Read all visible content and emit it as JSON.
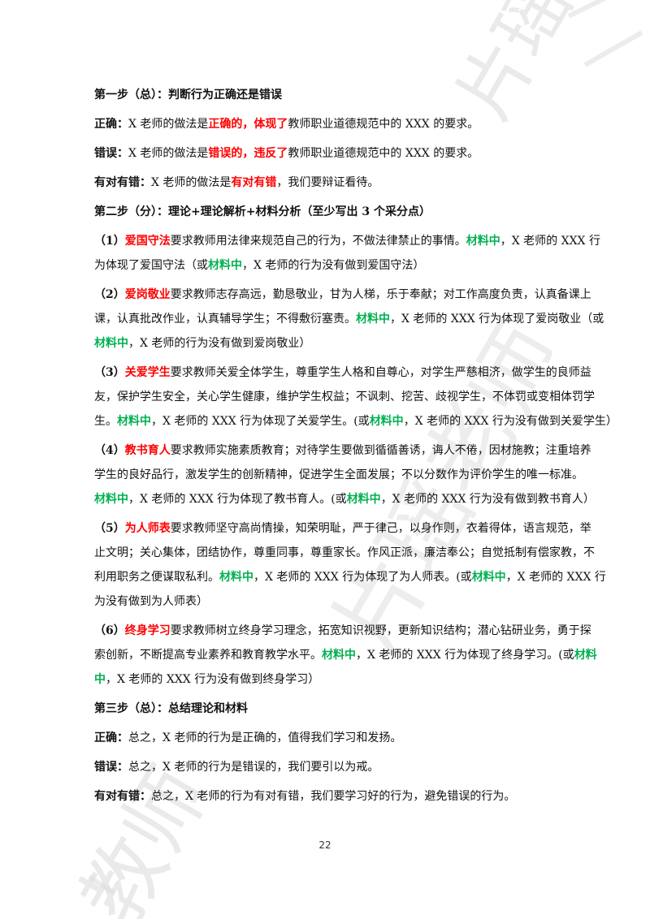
{
  "step1": {
    "heading": "第一步（总）：判断行为正确还是错误",
    "correct": {
      "label": "正确：",
      "pre": "X 老师的做法是",
      "highlight": "正确的，体现了",
      "post": "教师职业道德规范中的 XXX 的要求。"
    },
    "wrong": {
      "label": "错误：",
      "pre": "X 老师的做法是",
      "highlight": "错误的，违反了",
      "post": "教师职业道德规范中的 XXX 的要求。"
    },
    "mixed": {
      "label": "有对有错：",
      "pre": "X 老师的做法是",
      "highlight": "有对有错",
      "post": "，我们要辩证看待。"
    }
  },
  "step2": {
    "heading": "第二步（分）：理论+理论解析+材料分析（至少写出 3 个采分点）",
    "items": [
      {
        "num": "（1）",
        "term": "爱国守法",
        "line1_text": "要求教师用法律来规范自己的行为，不做法律禁止的事情。",
        "line1_green": "材料中",
        "line1_tail": "，X 老师的 XXX 行",
        "line2_pre": "为体现了爱国守法（或",
        "line2_green": "材料中",
        "line2_tail": "，X 老师的行为没有做到爱国守法）"
      },
      {
        "num": "（2）",
        "term": "爱岗敬业",
        "line1_text": "要求教师志存高远，勤恳敬业，甘为人梯，乐于奉献；对工作高度负责，认真备课上",
        "line2_pre": "课，认真批改作业，认真辅导学生；不得敷衍塞责。",
        "line2_green": "材料中",
        "line2_tail": "，X 老师的 XXX 行为体现了爱岗敬业（或",
        "line3_green": "材料中",
        "line3_tail": "，X 老师的行为没有做到爱岗敬业）"
      },
      {
        "num": "（3）",
        "term": "关爱学生",
        "line1_text": "要求教师关爱全体学生，尊重学生人格和自尊心，对学生严慈相济，做学生的良师益",
        "line2_text": "友，保护学生安全，关心学生健康，维护学生权益；不讽刺、挖苦、歧视学生，不体罚或变相体罚学",
        "line3_pre": "生。",
        "line3_green": "材料中",
        "line3_mid": "，X 老师的 XXX 行为体现了关爱学生。(或",
        "line3_green2": "材料中",
        "line3_tail": "，X 老师的 XXX 行为没有做到关爱学生）"
      },
      {
        "num": "（4）",
        "term": "教书育人",
        "line1_text": "要求教师实施素质教育；对待学生要做到循循善诱，诲人不倦，因材施教；注重培养",
        "line2_text": "学生的良好品行，激发学生的创新精神，促进学生全面发展；不以分数作为评价学生的唯一标准。",
        "line3_green": "材料中",
        "line3_mid": "，X 老师的 XXX 行为体现了教书育人。(或",
        "line3_green2": "材料中",
        "line3_tail": "，X 老师的 XXX 行为没有做到教书育人）"
      },
      {
        "num": "（5）",
        "term": "为人师表",
        "line1_text": "要求教师坚守高尚情操，知荣明耻，严于律己，以身作则，衣着得体，语言规范，举",
        "line2_text": "止文明；关心集体，团结协作，尊重同事，尊重家长。作风正派，廉洁奉公；自觉抵制有偿家教，不",
        "line3_pre": "利用职务之便谋取私利。",
        "line3_green": "材料中",
        "line3_mid": "，X 老师的 XXX 行为体现了为人师表。(或",
        "line3_green2": "材料中",
        "line3_tail": "，X 老师的 XXX 行",
        "line4_text": "为没有做到为人师表）"
      },
      {
        "num": "（6）",
        "term": "终身学习",
        "line1_text": "要求教师树立终身学习理念，拓宽知识视野，更新知识结构；潜心钻研业务，勇于探",
        "line2_pre": "索创新，不断提高专业素养和教育教学水平。",
        "line2_green": "材料中",
        "line2_mid": "，X 老师的 XXX 行为体现了终身学习。(或",
        "line2_green2": "材料",
        "line3_green": "中",
        "line3_tail": "，X 老师的 XXX 行为没有做到终身学习）"
      }
    ]
  },
  "step3": {
    "heading": "第三步（总）：总结理论和材料",
    "correct": {
      "label": "正确：",
      "text": "总之，X 老师的行为是正确的，值得我们学习和发扬。"
    },
    "wrong": {
      "label": "错误：",
      "text": "总之，X 老师的行为是错误的，我们要引以为戒。"
    },
    "mixed": {
      "label": "有对有错：",
      "text": "总之，X 老师的行为有对有错，我们要学习好的行为，避免错误的行为。"
    }
  },
  "watermark": {
    "text_top": "片瑶老",
    "text_mid": "片瑶老师",
    "text_bottom": "教师",
    "color": "#d9d9d9"
  },
  "page_number": "22",
  "colors": {
    "red": "#ff0000",
    "green": "#00b050",
    "text": "#111111"
  }
}
